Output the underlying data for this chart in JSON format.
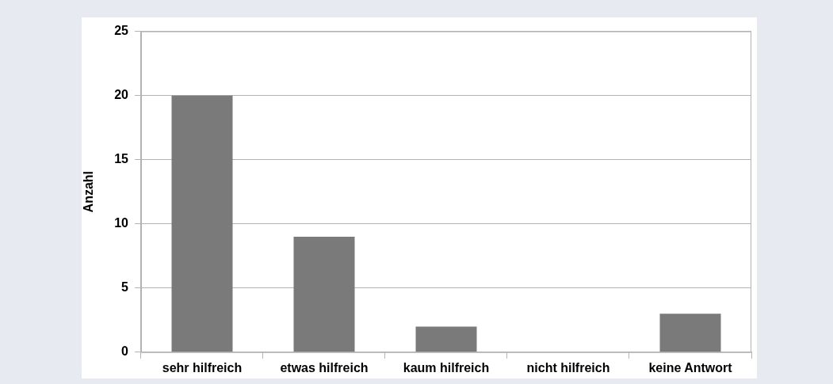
{
  "chart_data": {
    "type": "bar",
    "ylabel": "Anzahl",
    "categories": [
      "sehr hilfreich",
      "etwas hilfreich",
      "kaum hilfreich",
      "nicht hilfreich",
      "keine Antwort"
    ],
    "values": [
      20,
      9,
      2,
      0,
      3
    ],
    "color": "#7a7a7a",
    "ylim": [
      0,
      25
    ],
    "yticks": [
      0,
      5,
      10,
      15,
      20,
      25
    ],
    "grid": "y",
    "legend": false
  }
}
